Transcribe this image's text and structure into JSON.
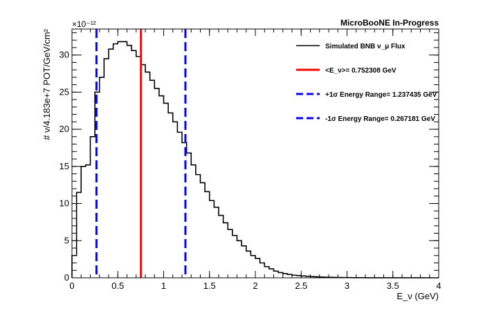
{
  "chart_data": {
    "type": "line",
    "title": "MicroBooNE In-Progress",
    "xlabel": "E_ν (GeV)",
    "ylabel": "# ν/4.183e+7 POT/GeV/cm²",
    "y_exponent_label": "×10⁻¹²",
    "xlim": [
      0,
      4
    ],
    "ylim": [
      0,
      33.5
    ],
    "grid": false,
    "legend_position": "top-right",
    "x_ticks": [
      "0",
      "0.5",
      "1",
      "1.5",
      "2",
      "2.5",
      "3",
      "3.5",
      "4"
    ],
    "y_ticks": [
      "0",
      "5",
      "10",
      "15",
      "20",
      "25",
      "30"
    ],
    "series": [
      {
        "name": "Simulated BNB ν_μ Flux",
        "color": "#000000",
        "style": "histogram",
        "bin_width": 0.05,
        "bin_start": 0,
        "values": [
          3.0,
          11.5,
          15.0,
          15.2,
          19.0,
          25.0,
          27.0,
          29.5,
          30.8,
          31.5,
          31.8,
          31.8,
          31.3,
          30.6,
          29.8,
          28.7,
          27.7,
          26.6,
          25.5,
          24.5,
          23.5,
          22.2,
          21.0,
          19.6,
          18.2,
          16.8,
          15.2,
          13.9,
          12.8,
          11.6,
          10.4,
          9.5,
          8.4,
          7.4,
          6.5,
          5.7,
          5.0,
          4.3,
          3.6,
          3.0,
          2.6,
          2.0,
          1.5,
          1.2,
          0.9,
          0.7,
          0.55,
          0.45,
          0.35,
          0.3,
          0.25,
          0.2,
          0.16,
          0.13,
          0.1,
          0.08,
          0.06,
          0.05,
          0.04,
          0.03,
          0.025,
          0.02,
          0.02,
          0.015,
          0.01,
          0.01,
          0.01,
          0.008,
          0.006,
          0.005,
          0.005,
          0.004,
          0.003,
          0.003,
          0.002,
          0.002,
          0.002,
          0.001,
          0.001,
          0.001
        ]
      },
      {
        "name": "<E_ν>= 0.752308 GeV",
        "color": "#ff0000",
        "style": "vertical-solid",
        "x": 0.752308
      },
      {
        "name": "+1σ Energy Range= 1.237435 GeV",
        "color": "#0000ff",
        "style": "vertical-dashed",
        "x": 1.237435
      },
      {
        "name": "-1σ Energy Range= 0.267181 GeV",
        "color": "#0000ff",
        "style": "vertical-dashed",
        "x": 0.267181
      }
    ]
  }
}
